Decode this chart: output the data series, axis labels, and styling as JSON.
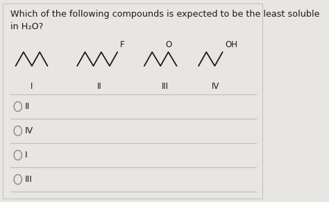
{
  "title_line1": "Which of the following compounds is expected to be the least soluble",
  "title_line2": "in H₂O?",
  "bg_color": "#e8e6e3",
  "card_color": "#f5f4f1",
  "text_color": "#1a1a1a",
  "options": [
    "II",
    "IV",
    "I",
    "III"
  ],
  "compound_labels": [
    "I",
    "II",
    "III",
    "IV"
  ],
  "font_size_title": 9.2,
  "font_size_label": 8.5,
  "font_size_option": 9.0,
  "line_color": "#c0bcb8"
}
